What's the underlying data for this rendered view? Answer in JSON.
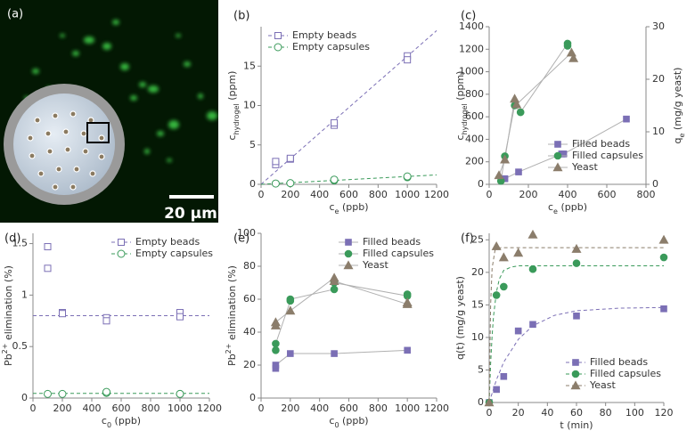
{
  "chart_data": [
    {
      "type": "image",
      "title": "(a)",
      "scale_label": "20 µm"
    },
    {
      "type": "scatter",
      "title": "(b)",
      "legend": "upper left",
      "xlabel": [
        {
          "t": "c"
        },
        {
          "t": "e",
          "s": "sub"
        },
        {
          "t": " (ppb)"
        }
      ],
      "ylabel": [
        {
          "t": "c"
        },
        {
          "t": "hydrogel",
          "s": "sub"
        },
        {
          "t": " (ppm)"
        }
      ],
      "xlim": [
        0,
        1200
      ],
      "xticks": [
        0,
        200,
        400,
        600,
        800,
        1000,
        1200
      ],
      "ylim": [
        0,
        20
      ],
      "yticks": [
        0,
        5,
        10,
        15
      ],
      "series": [
        {
          "name": "Empty beads",
          "color": "#7b6fb5",
          "marker": "square",
          "filled": false,
          "x": [
            100,
            100,
            200,
            200,
            500,
            500,
            1000,
            1000
          ],
          "y": [
            2.5,
            2.9,
            3.2,
            3.3,
            7.5,
            7.8,
            16.3,
            15.8
          ],
          "fit": {
            "x": [
              0,
              1200
            ],
            "y": [
              0,
              19.5
            ]
          }
        },
        {
          "name": "Empty capsules",
          "color": "#3a9a5a",
          "marker": "circle",
          "filled": false,
          "x": [
            100,
            200,
            500,
            500,
            1000,
            1000
          ],
          "y": [
            0.1,
            0.15,
            0.5,
            0.6,
            0.9,
            1.0
          ],
          "fit": {
            "x": [
              0,
              1200
            ],
            "y": [
              0,
              1.2
            ]
          }
        }
      ]
    },
    {
      "type": "scatter",
      "title": "(c)",
      "legend": "lower right",
      "xlabel": [
        {
          "t": "c"
        },
        {
          "t": "e",
          "s": "sub"
        },
        {
          "t": " (ppb)"
        }
      ],
      "ylabel": [
        {
          "t": "c"
        },
        {
          "t": "hydrogel",
          "s": "sub"
        },
        {
          "t": " (ppm)"
        }
      ],
      "y2label": [
        {
          "t": "q"
        },
        {
          "t": "e",
          "s": "sub"
        },
        {
          "t": " (mg/g yeast)"
        }
      ],
      "xlim": [
        0,
        800
      ],
      "xticks": [
        0,
        200,
        400,
        600,
        800
      ],
      "ylim": [
        0,
        1400
      ],
      "yticks": [
        0,
        200,
        400,
        600,
        800,
        1000,
        1200,
        1400
      ],
      "y2lim": [
        0,
        30
      ],
      "y2ticks": [
        0,
        10,
        20,
        30
      ],
      "series": [
        {
          "name": "Filled beads",
          "color": "#7b6fb5",
          "marker": "square",
          "filled": true,
          "line_color": "#b0b0b0",
          "x": [
            80,
            150,
            370,
            380,
            700
          ],
          "y": [
            50,
            110,
            270,
            270,
            580
          ]
        },
        {
          "name": "Filled capsules",
          "color": "#3a9a5a",
          "marker": "circle",
          "filled": true,
          "line_color": "#b0b0b0",
          "x": [
            60,
            80,
            130,
            160,
            400,
            400
          ],
          "y": [
            30,
            250,
            700,
            640,
            1250,
            1230
          ]
        },
        {
          "name": "Yeast",
          "color": "#8b7d6b",
          "marker": "triangle",
          "filled": true,
          "line_color": "#b0b0b0",
          "x": [
            50,
            80,
            130,
            140,
            420,
            430
          ],
          "y": [
            80,
            220,
            760,
            710,
            1170,
            1120
          ]
        }
      ]
    },
    {
      "type": "scatter",
      "title": "(d)",
      "legend": "upper right",
      "xlabel": [
        {
          "t": "c"
        },
        {
          "t": "0",
          "s": "sub"
        },
        {
          "t": " (ppb)"
        }
      ],
      "ylabel": [
        {
          "t": "Pb"
        },
        {
          "t": "2+",
          "s": "sup"
        },
        {
          "t": " elimination (%)"
        }
      ],
      "xlim": [
        0,
        1200
      ],
      "xticks": [
        0,
        200,
        400,
        600,
        800,
        1000,
        1200
      ],
      "ylim": [
        0,
        1.6
      ],
      "yticks": [
        0,
        0.5,
        1,
        1.5
      ],
      "series": [
        {
          "name": "Empty beads",
          "color": "#7b6fb5",
          "marker": "square",
          "filled": false,
          "x": [
            100,
            100,
            200,
            200,
            500,
            500,
            1000,
            1000
          ],
          "y": [
            1.47,
            1.26,
            0.83,
            0.82,
            0.78,
            0.75,
            0.83,
            0.79
          ],
          "fit": {
            "x": [
              0,
              1200
            ],
            "y": [
              0.8,
              0.8
            ]
          }
        },
        {
          "name": "Empty capsules",
          "color": "#3a9a5a",
          "marker": "circle",
          "filled": false,
          "x": [
            100,
            200,
            500,
            500,
            1000,
            1000
          ],
          "y": [
            0.04,
            0.04,
            0.05,
            0.06,
            0.04,
            0.04
          ],
          "fit": {
            "x": [
              0,
              1200
            ],
            "y": [
              0.045,
              0.045
            ]
          }
        }
      ]
    },
    {
      "type": "scatter",
      "title": "(e)",
      "legend": "upper right",
      "xlabel": [
        {
          "t": "c"
        },
        {
          "t": "0",
          "s": "sub"
        },
        {
          "t": " (ppb)"
        }
      ],
      "ylabel": [
        {
          "t": "Pb"
        },
        {
          "t": "2+",
          "s": "sup"
        },
        {
          "t": " elimination (%)"
        }
      ],
      "xlim": [
        0,
        1200
      ],
      "xticks": [
        0,
        200,
        400,
        600,
        800,
        1000,
        1200
      ],
      "ylim": [
        0,
        100
      ],
      "yticks": [
        0,
        20,
        40,
        60,
        80,
        100
      ],
      "series": [
        {
          "name": "Filled beads",
          "color": "#7b6fb5",
          "marker": "square",
          "filled": true,
          "line_color": "#b0b0b0",
          "x": [
            100,
            100,
            200,
            500,
            1000
          ],
          "y": [
            18,
            20,
            27,
            27,
            29
          ]
        },
        {
          "name": "Filled capsules",
          "color": "#3a9a5a",
          "marker": "circle",
          "filled": true,
          "line_color": "#b0b0b0",
          "x": [
            100,
            100,
            200,
            200,
            500,
            500,
            1000,
            1000
          ],
          "y": [
            29,
            33,
            59,
            60,
            66,
            70,
            62,
            63
          ]
        },
        {
          "name": "Yeast",
          "color": "#8b7d6b",
          "marker": "triangle",
          "filled": true,
          "line_color": "#b0b0b0",
          "x": [
            100,
            100,
            200,
            500,
            500,
            1000,
            1000
          ],
          "y": [
            44,
            46,
            53,
            73,
            71,
            57,
            58
          ]
        }
      ]
    },
    {
      "type": "scatter",
      "title": "(f)",
      "legend": "lower right",
      "xlabel": [
        {
          "t": "t (min)"
        }
      ],
      "ylabel": [
        {
          "t": "q(t) (mg/g yeast)"
        }
      ],
      "xlim": [
        0,
        120
      ],
      "xticks": [
        0,
        20,
        40,
        60,
        80,
        100,
        120
      ],
      "ylim": [
        0,
        26
      ],
      "yticks": [
        0,
        5,
        10,
        15,
        20,
        25
      ],
      "series": [
        {
          "name": "Filled beads",
          "color": "#7b6fb5",
          "marker": "square",
          "filled": true,
          "x": [
            0,
            5,
            10,
            20,
            30,
            60,
            120
          ],
          "y": [
            0,
            2,
            4,
            11,
            12,
            13.3,
            14.4
          ],
          "fit": {
            "x": [
              0,
              5,
              10,
              20,
              30,
              45,
              60,
              90,
              120
            ],
            "y": [
              0,
              3.5,
              6.2,
              9.7,
              11.8,
              13.4,
              14.1,
              14.5,
              14.6
            ]
          }
        },
        {
          "name": "Filled capsules",
          "color": "#3a9a5a",
          "marker": "circle",
          "filled": true,
          "x": [
            0,
            5,
            10,
            30,
            60,
            120
          ],
          "y": [
            0,
            16.5,
            17.8,
            20.5,
            21.4,
            22.3
          ],
          "fit": {
            "x": [
              0,
              1,
              2,
              3,
              5,
              7,
              10,
              15,
              20,
              120
            ],
            "y": [
              0,
              6,
              10.2,
              13.3,
              17,
              19,
              20.3,
              20.8,
              21,
              21
            ]
          }
        },
        {
          "name": "Yeast",
          "color": "#8b7d6b",
          "marker": "triangle",
          "filled": true,
          "x": [
            0,
            5,
            10,
            20,
            30,
            60,
            120
          ],
          "y": [
            0,
            24,
            22.3,
            23,
            25.8,
            23.6,
            25
          ],
          "fit": {
            "x": [
              0,
              1,
              2,
              4,
              8,
              120
            ],
            "y": [
              0,
              15,
              20.6,
              23.4,
              23.8,
              23.8
            ]
          }
        }
      ]
    }
  ]
}
